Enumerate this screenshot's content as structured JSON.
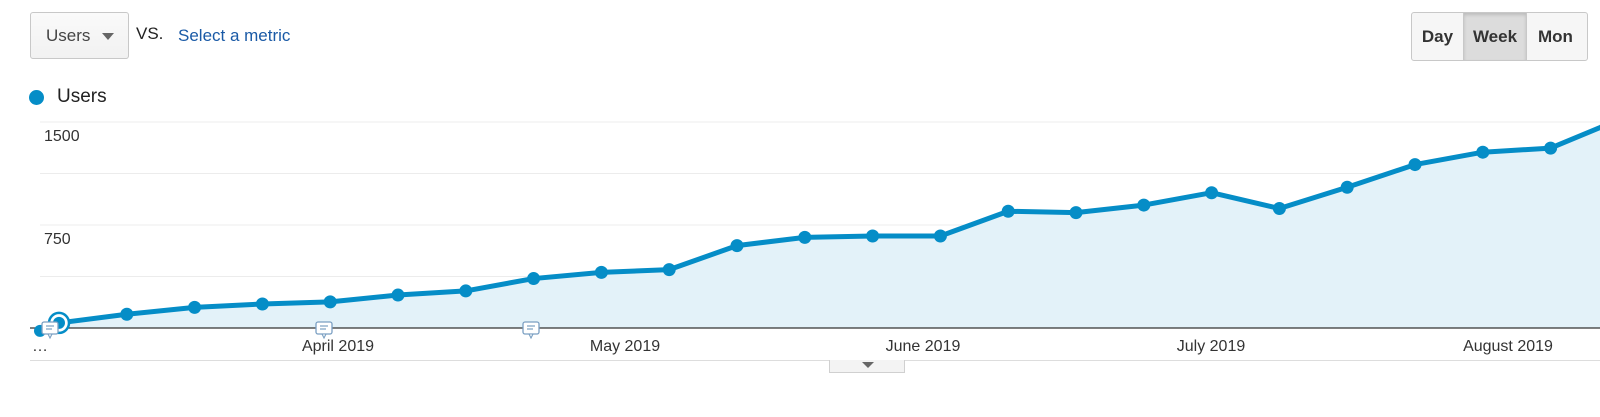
{
  "controls": {
    "primary_metric": "Users",
    "vs_label": "VS.",
    "select_metric_link": "Select a metric",
    "period_buttons": [
      "Day",
      "Week",
      "Mon"
    ],
    "active_period": "Week"
  },
  "colors": {
    "series": "#058dc7",
    "fill": "#e3f2f9",
    "link": "#1a5aa6"
  },
  "chart_data": {
    "type": "area",
    "legend": [
      "Users"
    ],
    "series": [
      {
        "name": "Users",
        "values": [
          37,
          100,
          150,
          175,
          190,
          240,
          270,
          360,
          405,
          425,
          600,
          660,
          670,
          670,
          850,
          840,
          895,
          985,
          870,
          1025,
          1190,
          1280,
          1310,
          1515,
          1490
        ]
      }
    ],
    "ylim": [
      0,
      1500
    ],
    "y_ticks": [
      750,
      1500
    ],
    "x_ticks": [
      "…",
      "April 2019",
      "May 2019",
      "June 2019",
      "July 2019",
      "August 2019"
    ],
    "grid": true,
    "annotations_markers": 2
  }
}
